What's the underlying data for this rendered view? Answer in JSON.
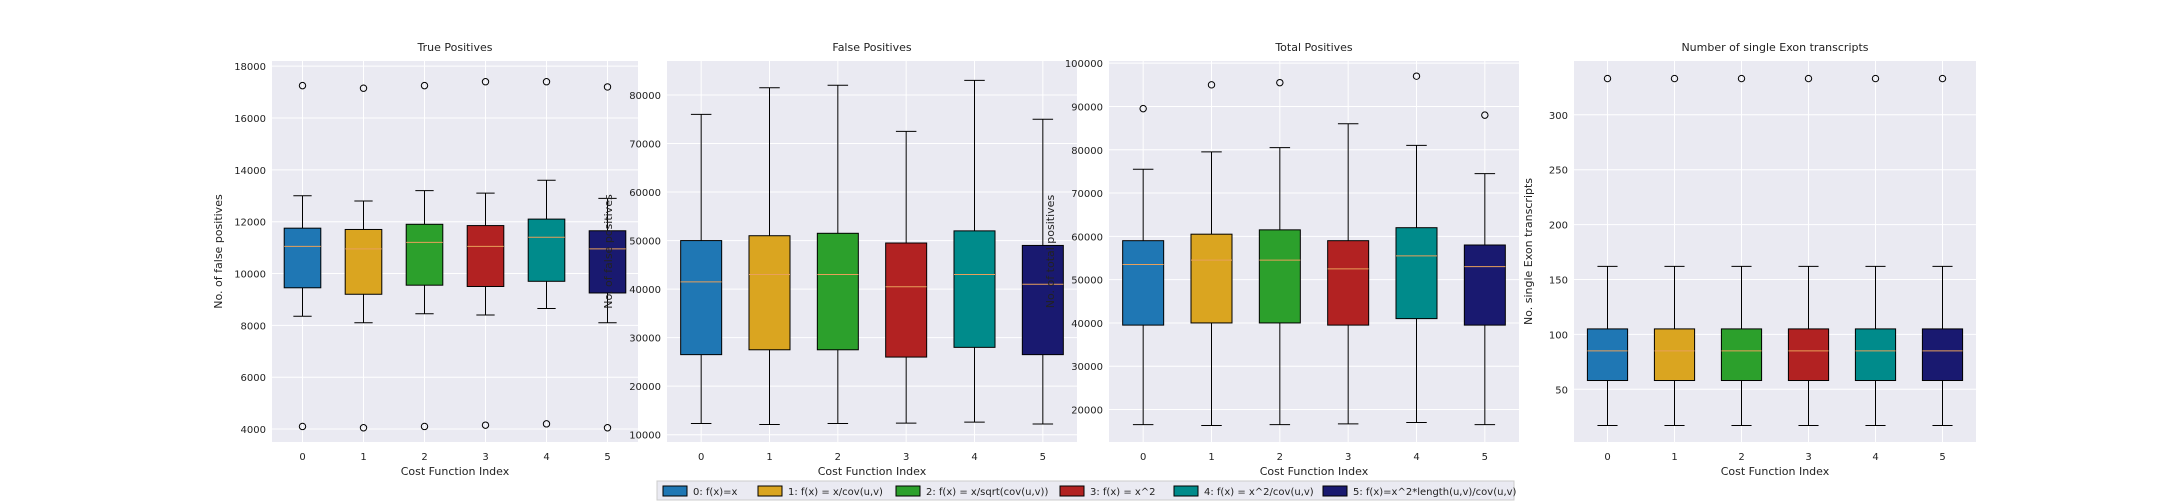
{
  "chart_data": {
    "type": "box",
    "grid": true,
    "legend_position": "bottom-center",
    "legend": [
      {
        "label": "0: f(x)=x",
        "color": "#1f77b4"
      },
      {
        "label": "1: f(x) = x/cov(u,v)",
        "color": "#daa520"
      },
      {
        "label": "2: f(x) = x/sqrt(cov(u,v))",
        "color": "#2ca02c"
      },
      {
        "label": "3: f(x) = x^2",
        "color": "#b22222"
      },
      {
        "label": "4: f(x) = x^2/cov(u,v)",
        "color": "#008b8b"
      },
      {
        "label": "5: f(x)=x^2*length(u,v)/cov(u,v)",
        "color": "#191970"
      }
    ],
    "panels": [
      {
        "title": "True Positives",
        "xlabel": "Cost Function Index",
        "ylabel": "No. of false positives",
        "categories": [
          "0",
          "1",
          "2",
          "3",
          "4",
          "5"
        ],
        "ylim": [
          3500,
          18200
        ],
        "yticks": [
          4000,
          6000,
          8000,
          10000,
          12000,
          14000,
          16000,
          18000
        ],
        "boxes": [
          {
            "whislo": 8350,
            "q1": 9450,
            "med": 11050,
            "q3": 11750,
            "whishi": 13000,
            "fliers": [
              4100,
              17250
            ]
          },
          {
            "whislo": 8100,
            "q1": 9200,
            "med": 10950,
            "q3": 11700,
            "whishi": 12800,
            "fliers": [
              4050,
              17150
            ]
          },
          {
            "whislo": 8450,
            "q1": 9550,
            "med": 11200,
            "q3": 11900,
            "whishi": 13200,
            "fliers": [
              4100,
              17250
            ]
          },
          {
            "whislo": 8400,
            "q1": 9500,
            "med": 11050,
            "q3": 11850,
            "whishi": 13100,
            "fliers": [
              4150,
              17400
            ]
          },
          {
            "whislo": 8650,
            "q1": 9700,
            "med": 11400,
            "q3": 12100,
            "whishi": 13600,
            "fliers": [
              4200,
              17400
            ]
          },
          {
            "whislo": 8100,
            "q1": 9250,
            "med": 10950,
            "q3": 11650,
            "whishi": 12900,
            "fliers": [
              4050,
              17200
            ]
          }
        ]
      },
      {
        "title": "False Positives",
        "xlabel": "Cost Function Index",
        "ylabel": "No. of false positives",
        "categories": [
          "0",
          "1",
          "2",
          "3",
          "4",
          "5"
        ],
        "ylim": [
          8500,
          87000
        ],
        "yticks": [
          10000,
          20000,
          30000,
          40000,
          50000,
          60000,
          70000,
          80000
        ],
        "boxes": [
          {
            "whislo": 12300,
            "q1": 26500,
            "med": 41500,
            "q3": 50000,
            "whishi": 76000,
            "fliers": []
          },
          {
            "whislo": 12100,
            "q1": 27500,
            "med": 43000,
            "q3": 51000,
            "whishi": 81500,
            "fliers": []
          },
          {
            "whislo": 12300,
            "q1": 27500,
            "med": 43000,
            "q3": 51500,
            "whishi": 82000,
            "fliers": []
          },
          {
            "whislo": 12400,
            "q1": 26000,
            "med": 40500,
            "q3": 49500,
            "whishi": 72500,
            "fliers": []
          },
          {
            "whislo": 12600,
            "q1": 28000,
            "med": 43000,
            "q3": 52000,
            "whishi": 83000,
            "fliers": []
          },
          {
            "whislo": 12200,
            "q1": 26500,
            "med": 41000,
            "q3": 49000,
            "whishi": 75000,
            "fliers": []
          }
        ]
      },
      {
        "title": "Total Positives",
        "xlabel": "Cost Function Index",
        "ylabel": "No. of total positives",
        "categories": [
          "0",
          "1",
          "2",
          "3",
          "4",
          "5"
        ],
        "ylim": [
          12500,
          100500
        ],
        "yticks": [
          20000,
          30000,
          40000,
          50000,
          60000,
          70000,
          80000,
          90000,
          100000
        ],
        "boxes": [
          {
            "whislo": 16500,
            "q1": 39500,
            "med": 53500,
            "q3": 59000,
            "whishi": 75500,
            "fliers": [
              89500
            ]
          },
          {
            "whislo": 16300,
            "q1": 40000,
            "med": 54500,
            "q3": 60500,
            "whishi": 79500,
            "fliers": [
              95000
            ]
          },
          {
            "whislo": 16500,
            "q1": 40000,
            "med": 54500,
            "q3": 61500,
            "whishi": 80500,
            "fliers": [
              95500
            ]
          },
          {
            "whislo": 16700,
            "q1": 39500,
            "med": 52500,
            "q3": 59000,
            "whishi": 86000,
            "fliers": []
          },
          {
            "whislo": 17000,
            "q1": 41000,
            "med": 55500,
            "q3": 62000,
            "whishi": 81000,
            "fliers": [
              97000
            ]
          },
          {
            "whislo": 16500,
            "q1": 39500,
            "med": 53000,
            "q3": 58000,
            "whishi": 74500,
            "fliers": [
              88000
            ]
          }
        ]
      },
      {
        "title": "Number of single Exon transcripts",
        "xlabel": "Cost Function Index",
        "ylabel": "No. single Exon transcripts",
        "categories": [
          "0",
          "1",
          "2",
          "3",
          "4",
          "5"
        ],
        "ylim": [
          2,
          349
        ],
        "yticks": [
          50,
          100,
          150,
          200,
          250,
          300
        ],
        "boxes": [
          {
            "whislo": 17,
            "q1": 58,
            "med": 85,
            "q3": 105,
            "whishi": 162,
            "fliers": [
              333
            ]
          },
          {
            "whislo": 17,
            "q1": 58,
            "med": 85,
            "q3": 105,
            "whishi": 162,
            "fliers": [
              333
            ]
          },
          {
            "whislo": 17,
            "q1": 58,
            "med": 85,
            "q3": 105,
            "whishi": 162,
            "fliers": [
              333
            ]
          },
          {
            "whislo": 17,
            "q1": 58,
            "med": 85,
            "q3": 105,
            "whishi": 162,
            "fliers": [
              333
            ]
          },
          {
            "whislo": 17,
            "q1": 58,
            "med": 85,
            "q3": 105,
            "whishi": 162,
            "fliers": [
              333
            ]
          },
          {
            "whislo": 17,
            "q1": 58,
            "med": 85,
            "q3": 105,
            "whishi": 162,
            "fliers": [
              333
            ]
          }
        ]
      }
    ]
  }
}
